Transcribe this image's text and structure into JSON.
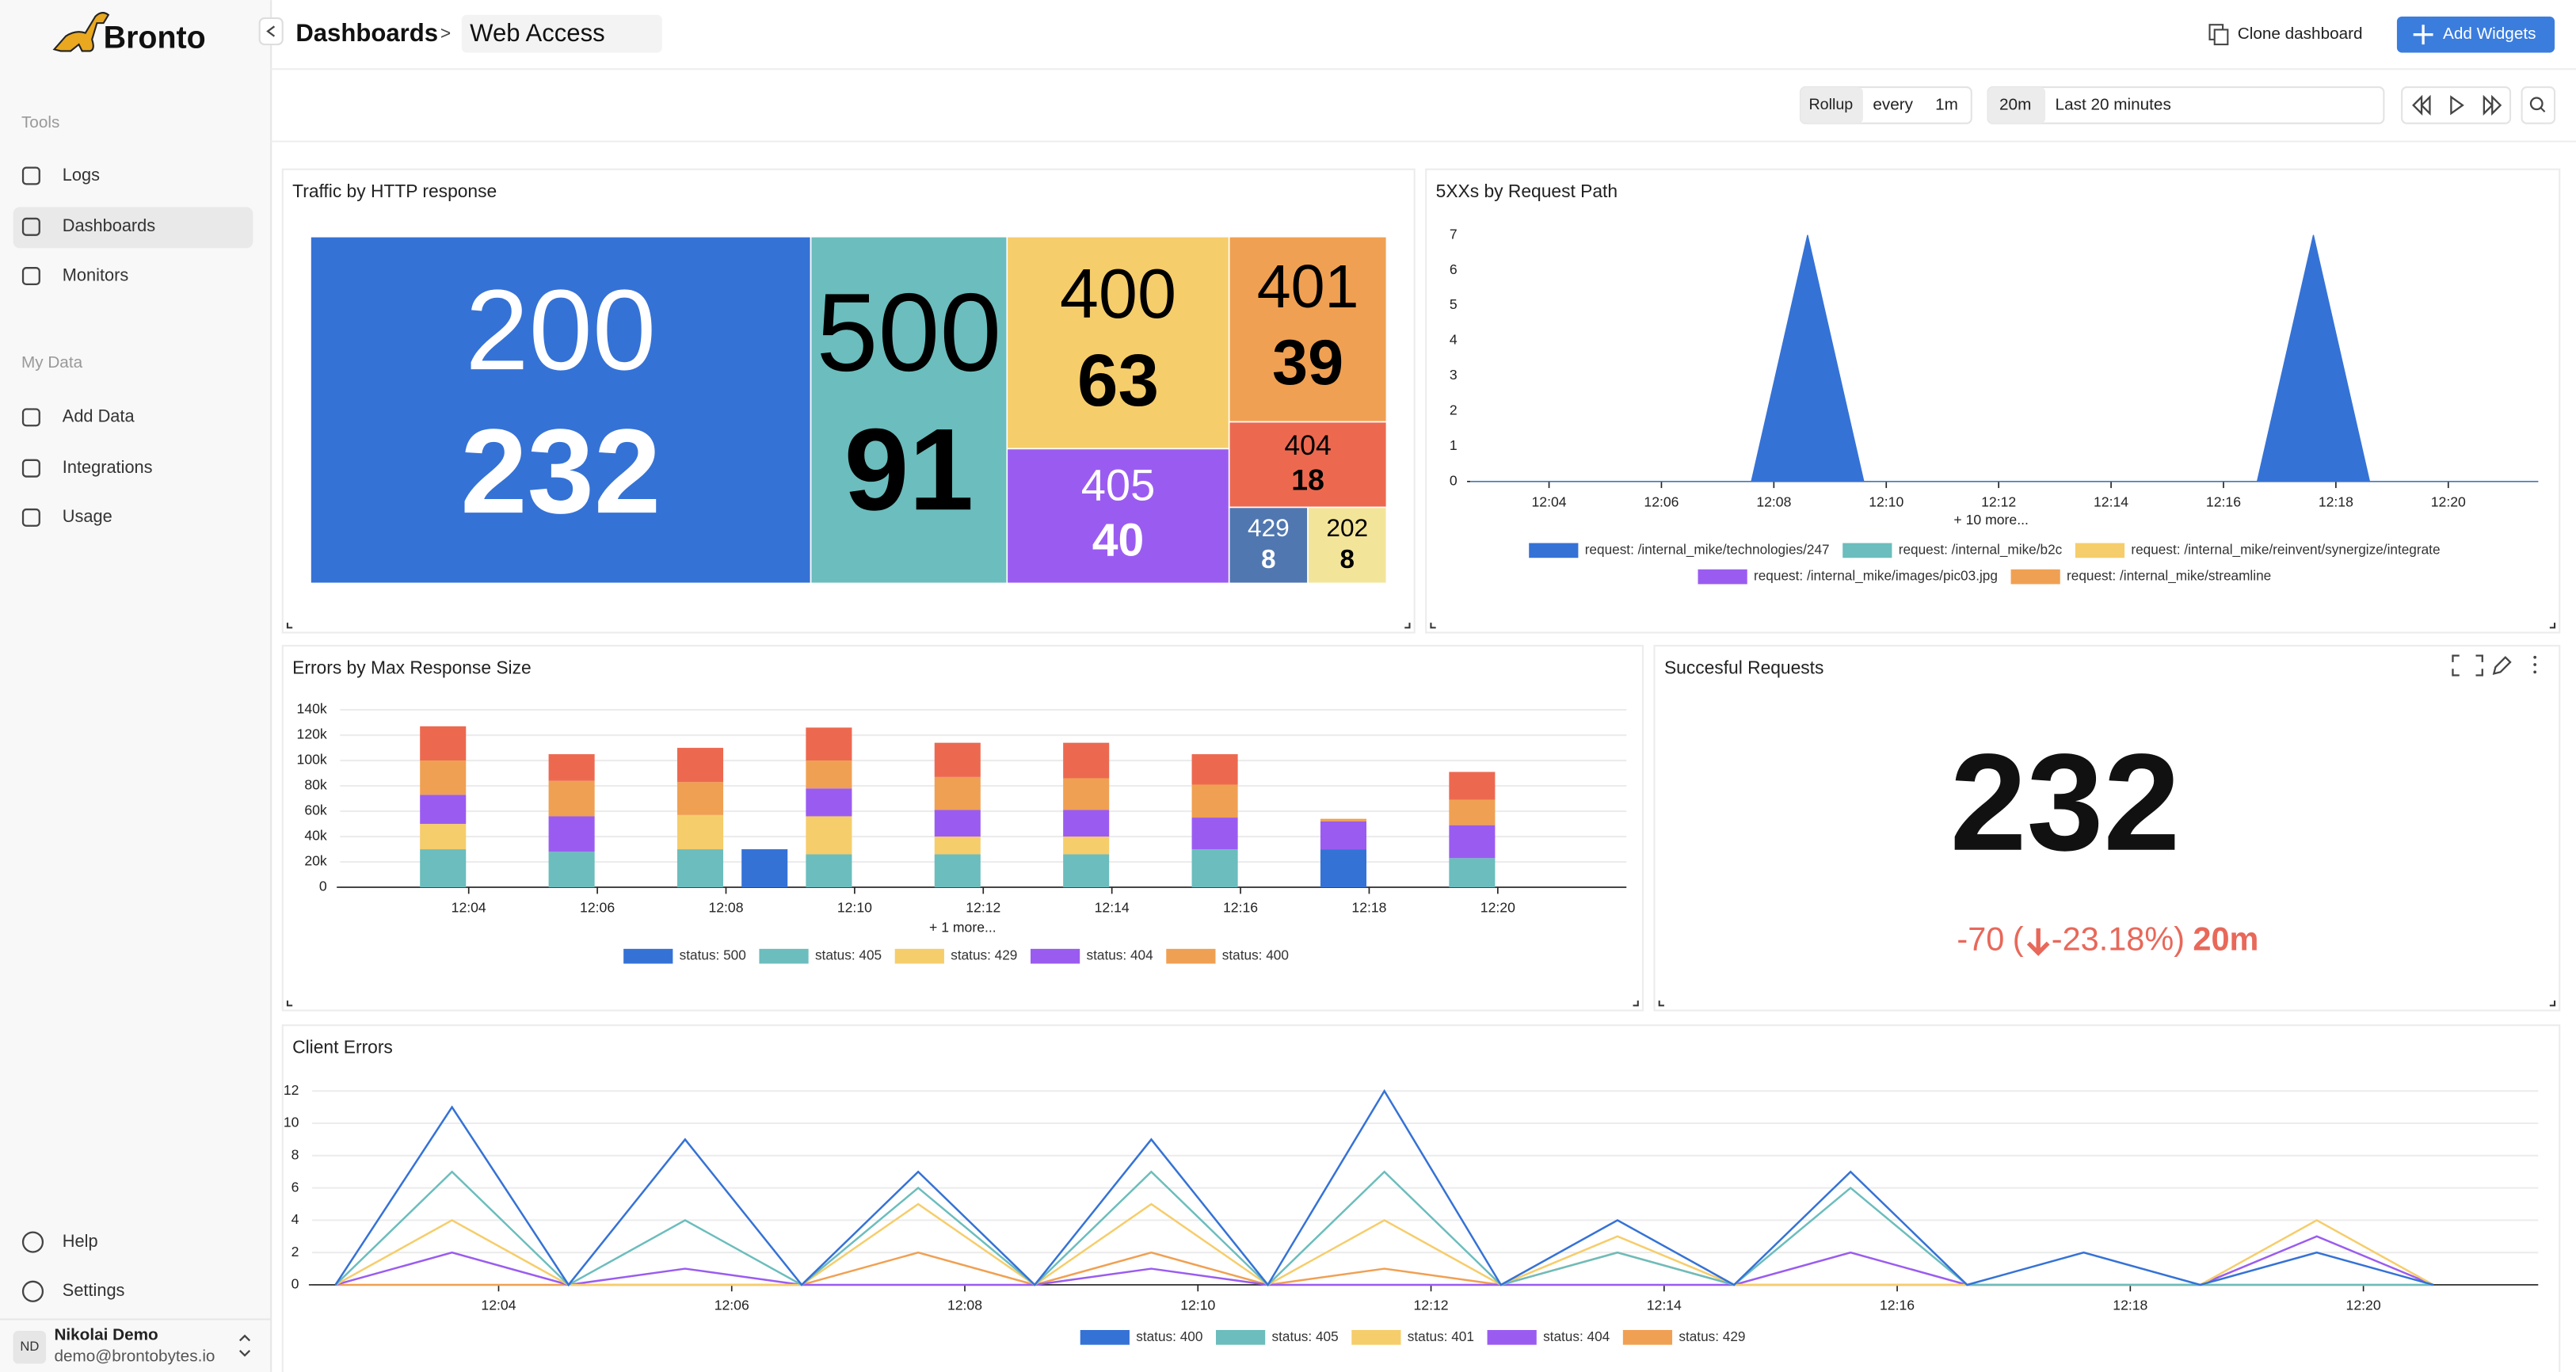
{
  "sidebar": {
    "brand": "Bronto",
    "sections": [
      {
        "title": "Tools",
        "items": [
          "Logs",
          "Dashboards",
          "Monitors"
        ]
      },
      {
        "title": "My Data",
        "items": [
          "Add Data",
          "Integrations",
          "Usage"
        ]
      }
    ],
    "bottom_items": [
      "Help",
      "Settings"
    ],
    "user": {
      "initials": "ND",
      "name": "Nikolai Demo",
      "email": "demo@brontobytes.io"
    }
  },
  "header": {
    "breadcrumb": [
      "Dashboards",
      "Web Access"
    ],
    "separator": ">",
    "actions": [
      "Clone dashboard",
      "Add Widgets"
    ]
  },
  "toolbar": {
    "rollup": "Rollup",
    "every": "every",
    "interval": "1m",
    "range": "20m",
    "range_label": "Last 20 minutes"
  },
  "widgets": [
    {
      "title": "Traffic by HTTP response",
      "chart": {
        "type": "treemap",
        "categories": [
          "200",
          "500",
          "400",
          "405",
          "401",
          "404",
          "429",
          "202"
        ],
        "values": [
          232,
          91,
          63,
          40,
          39,
          18,
          8,
          8
        ],
        "colors": [
          "#3572d6",
          "#6cbdbd",
          "#f6cd6b",
          "#9a5cf0",
          "#f0a052",
          "#ec6950",
          "#5077b0",
          "#f2e59a"
        ]
      }
    },
    {
      "title": "5XXs by Request Path",
      "chart": {
        "type": "area",
        "x": [
          2.6,
          3.6,
          4.6,
          5.6,
          6.6,
          7.6,
          8.6,
          9.6,
          10.6,
          11.6,
          12.6,
          13.6,
          14.6,
          15.6,
          16.6,
          17.6,
          18.6,
          19.6,
          20.6,
          21.6
        ],
        "xlim": [
          2.6,
          21.6
        ],
        "xticks": [
          {
            "value": 4,
            "label": "12:04"
          },
          {
            "value": 6,
            "label": "12:06"
          },
          {
            "value": 8,
            "label": "12:08"
          },
          {
            "value": 10,
            "label": "12:10"
          },
          {
            "value": 12,
            "label": "12:12"
          },
          {
            "value": 14,
            "label": "12:14"
          },
          {
            "value": 16,
            "label": "12:16"
          },
          {
            "value": 18,
            "label": "12:18"
          },
          {
            "value": 20,
            "label": "12:20"
          }
        ],
        "ylim": [
          0,
          7
        ],
        "yticks": [
          0,
          1,
          2,
          3,
          4,
          5,
          6,
          7
        ],
        "grid": false,
        "more": "+ 10 more...",
        "series": [
          {
            "name": "request: /internal_mike/technologies/247",
            "color": "#3572d6",
            "values": [
              0,
              0,
              0,
              0,
              0,
              0,
              7,
              0,
              0,
              0,
              0,
              0,
              0,
              0,
              0,
              7,
              0,
              0,
              0,
              0
            ]
          },
          {
            "name": "request: /internal_mike/b2c",
            "color": "#6cbdbd",
            "values": [
              0,
              0,
              0,
              0,
              0,
              0,
              0,
              0,
              0,
              0,
              0,
              0,
              0,
              0,
              0,
              0,
              0,
              0,
              0,
              0
            ]
          },
          {
            "name": "request: /internal_mike/reinvent/synergize/integrate",
            "color": "#f6cd6b",
            "values": [
              0,
              0,
              0,
              0,
              0,
              0,
              0,
              0,
              0,
              0,
              0,
              0,
              0,
              0,
              0,
              0,
              0,
              0,
              0,
              0
            ]
          },
          {
            "name": "request: /internal_mike/images/pic03.jpg",
            "color": "#9a5cf0",
            "values": [
              0,
              0,
              0,
              0,
              0,
              0,
              0,
              0,
              0,
              0,
              0,
              0,
              0,
              0,
              0,
              0,
              0,
              0,
              0,
              0
            ]
          },
          {
            "name": "request: /internal_mike/streamline",
            "color": "#f0a052",
            "values": [
              0,
              0,
              0,
              0,
              0,
              0,
              0,
              0,
              0,
              0,
              0,
              0,
              0,
              0,
              0,
              0,
              0,
              0,
              0,
              0
            ]
          }
        ]
      }
    },
    {
      "title": "Errors by Max Response Size",
      "chart": {
        "type": "stacked_bar",
        "x": [
          3.6,
          5.6,
          7.6,
          8.6,
          9.6,
          11.6,
          13.6,
          15.6,
          17.6,
          19.6
        ],
        "xlim": [
          2,
          22
        ],
        "xticks": [
          {
            "value": 4,
            "label": "12:04"
          },
          {
            "value": 6,
            "label": "12:06"
          },
          {
            "value": 8,
            "label": "12:08"
          },
          {
            "value": 10,
            "label": "12:10"
          },
          {
            "value": 12,
            "label": "12:12"
          },
          {
            "value": 14,
            "label": "12:14"
          },
          {
            "value": 16,
            "label": "12:16"
          },
          {
            "value": 18,
            "label": "12:18"
          },
          {
            "value": 20,
            "label": "12:20"
          }
        ],
        "ylim": [
          0,
          140000
        ],
        "yticks": [
          0,
          {
            "value": 20000,
            "label": "20k"
          },
          {
            "value": 40000,
            "label": "40k"
          },
          {
            "value": 60000,
            "label": "60k"
          },
          {
            "value": 80000,
            "label": "80k"
          },
          {
            "value": 100000,
            "label": "100k"
          },
          {
            "value": 120000,
            "label": "120k"
          },
          {
            "value": 140000,
            "label": "140k"
          }
        ],
        "grid": true,
        "more": "+ 1 more...",
        "series": [
          {
            "name": "status: 500",
            "color": "#3572d6",
            "values": [
              0,
              0,
              0,
              30000,
              0,
              0,
              0,
              0,
              30000,
              0
            ]
          },
          {
            "name": "status: 405",
            "color": "#6cbdbd",
            "values": [
              30000,
              28000,
              30000,
              0,
              26000,
              26000,
              26000,
              30000,
              0,
              23000
            ]
          },
          {
            "name": "status: 429",
            "color": "#f6cd6b",
            "values": [
              20000,
              0,
              27000,
              0,
              30000,
              14000,
              14000,
              0,
              0,
              0
            ]
          },
          {
            "name": "status: 404",
            "color": "#9a5cf0",
            "values": [
              23000,
              28000,
              0,
              0,
              22000,
              21000,
              21000,
              25000,
              22000,
              26000
            ]
          },
          {
            "name": "status: 400",
            "color": "#f0a052",
            "values": [
              27000,
              28000,
              26000,
              0,
              22000,
              26000,
              25000,
              26000,
              2000,
              20000
            ]
          },
          {
            "color": "#ec6950",
            "values": [
              27000,
              21000,
              27000,
              0,
              26000,
              27000,
              28000,
              24000,
              0,
              22000
            ]
          }
        ]
      }
    },
    {
      "title": "Succesful Requests",
      "stat": {
        "value": 232,
        "delta": "-70",
        "brackets": [
          "(",
          ")"
        ],
        "delta_pct": "-23.18%",
        "period": "20m",
        "color": "#e8685a"
      }
    },
    {
      "title": "Client Errors",
      "chart": {
        "type": "line",
        "x": [
          2.6,
          3.6,
          4.6,
          5.6,
          6.6,
          7.6,
          8.6,
          9.6,
          10.6,
          11.6,
          12.6,
          13.6,
          14.6,
          15.6,
          16.6,
          17.6,
          18.6,
          19.6,
          20.6
        ],
        "xlim": [
          2.4,
          21.5
        ],
        "xticks": [
          {
            "value": 4,
            "label": "12:04"
          },
          {
            "value": 6,
            "label": "12:06"
          },
          {
            "value": 8,
            "label": "12:08"
          },
          {
            "value": 10,
            "label": "12:10"
          },
          {
            "value": 12,
            "label": "12:12"
          },
          {
            "value": 14,
            "label": "12:14"
          },
          {
            "value": 16,
            "label": "12:16"
          },
          {
            "value": 18,
            "label": "12:18"
          },
          {
            "value": 20,
            "label": "12:20"
          }
        ],
        "ylim": [
          0,
          12
        ],
        "yticks": [
          0,
          2,
          4,
          6,
          8,
          10,
          12
        ],
        "grid": true,
        "series": [
          {
            "name": "status: 400",
            "color": "#3572d6",
            "values": [
              0,
              11,
              0,
              9,
              0,
              7,
              0,
              9,
              0,
              12,
              0,
              4,
              0,
              7,
              0,
              2,
              0,
              2,
              0
            ]
          },
          {
            "name": "status: 405",
            "color": "#6cbdbd",
            "values": [
              0,
              7,
              0,
              4,
              0,
              6,
              0,
              7,
              0,
              7,
              0,
              2,
              0,
              6,
              0,
              0,
              0,
              0,
              0
            ]
          },
          {
            "name": "status: 401",
            "color": "#f6cd6b",
            "values": [
              0,
              4,
              0,
              0,
              0,
              5,
              0,
              5,
              0,
              4,
              0,
              3,
              0,
              0,
              0,
              0,
              0,
              4,
              0
            ]
          },
          {
            "name": "status: 404",
            "color": "#9a5cf0",
            "values": [
              0,
              2,
              0,
              1,
              0,
              0,
              0,
              1,
              0,
              0,
              0,
              0,
              0,
              2,
              0,
              0,
              0,
              3,
              0
            ]
          },
          {
            "name": "status: 429",
            "color": "#f0a052",
            "values": [
              0,
              0,
              0,
              0,
              0,
              2,
              0,
              2,
              0,
              1,
              0,
              2,
              0,
              0,
              0,
              0,
              0,
              0,
              0
            ]
          }
        ]
      }
    }
  ]
}
